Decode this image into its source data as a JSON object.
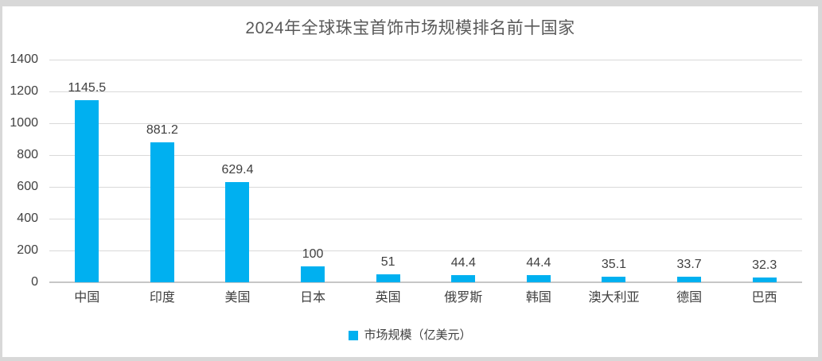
{
  "page": {
    "background_color": "#D8D8D8",
    "canvas_color": "#FFFFFF"
  },
  "chart_data": {
    "type": "bar",
    "title": "2024年全球珠宝首饰市场规模排名前十国家",
    "categories": [
      "中国",
      "印度",
      "美国",
      "日本",
      "英国",
      "俄罗斯",
      "韩国",
      "澳大利亚",
      "德国",
      "巴西"
    ],
    "values": [
      1145.5,
      881.2,
      629.4,
      100,
      51,
      44.4,
      44.4,
      35.1,
      33.7,
      32.3
    ],
    "series_name": "市场规模（亿美元）",
    "xlabel": "",
    "ylabel": "",
    "ylim": [
      0,
      1400
    ],
    "ytick_step": 200,
    "grid": true,
    "data_labels": true,
    "legend_position": "bottom",
    "bar_color": "#00B0F0",
    "gridline_color": "#D9D9D9",
    "axis_line_color": "#C6C6C6",
    "title_color": "#595959",
    "label_color": "#404040"
  }
}
